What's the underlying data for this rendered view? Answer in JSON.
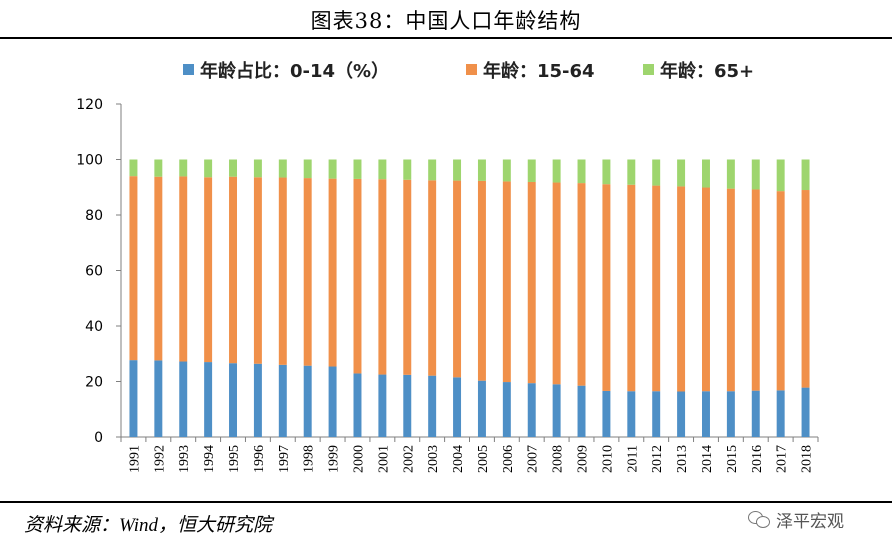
{
  "header": {
    "title": "图表38：中国人口年龄结构"
  },
  "footer": {
    "source": "资料来源：Wind，恒大研究院",
    "watermark": "泽平宏观"
  },
  "chart_data": {
    "type": "bar",
    "stacked": true,
    "title": "",
    "xlabel": "",
    "ylabel": "",
    "ylim": [
      0,
      120
    ],
    "yticks": [
      0,
      20,
      40,
      60,
      80,
      100,
      120
    ],
    "grid": false,
    "legend_position": "top",
    "categories": [
      "1991",
      "1992",
      "1993",
      "1994",
      "1995",
      "1996",
      "1997",
      "1998",
      "1999",
      "2000",
      "2001",
      "2002",
      "2003",
      "2004",
      "2005",
      "2006",
      "2007",
      "2008",
      "2009",
      "2010",
      "2011",
      "2012",
      "2013",
      "2014",
      "2015",
      "2016",
      "2017",
      "2018"
    ],
    "series": [
      {
        "name": "年龄占比：0-14（%）",
        "color": "#4e8fc6",
        "values": [
          27.7,
          27.6,
          27.2,
          27.0,
          26.6,
          26.4,
          26.0,
          25.7,
          25.4,
          22.9,
          22.5,
          22.4,
          22.1,
          21.5,
          20.3,
          19.8,
          19.4,
          19.0,
          18.5,
          16.6,
          16.5,
          16.5,
          16.4,
          16.5,
          16.5,
          16.7,
          16.8,
          17.8
        ]
      },
      {
        "name": "年龄：15-64",
        "color": "#f0904a",
        "values": [
          66.3,
          66.2,
          66.7,
          66.6,
          67.2,
          67.2,
          67.5,
          67.6,
          67.7,
          70.1,
          70.4,
          70.3,
          70.4,
          70.9,
          72.0,
          72.3,
          72.5,
          72.7,
          73.0,
          74.5,
          74.4,
          74.1,
          73.9,
          73.4,
          73.0,
          72.5,
          71.8,
          71.2
        ]
      },
      {
        "name": "年龄：65+",
        "color": "#9ed56e",
        "values": [
          6.0,
          6.2,
          6.1,
          6.4,
          6.2,
          6.4,
          6.5,
          6.7,
          6.9,
          7.0,
          7.1,
          7.3,
          7.5,
          7.6,
          7.7,
          7.9,
          8.1,
          8.3,
          8.5,
          8.9,
          9.1,
          9.4,
          9.7,
          10.1,
          10.5,
          10.8,
          11.4,
          11.0
        ]
      }
    ]
  }
}
